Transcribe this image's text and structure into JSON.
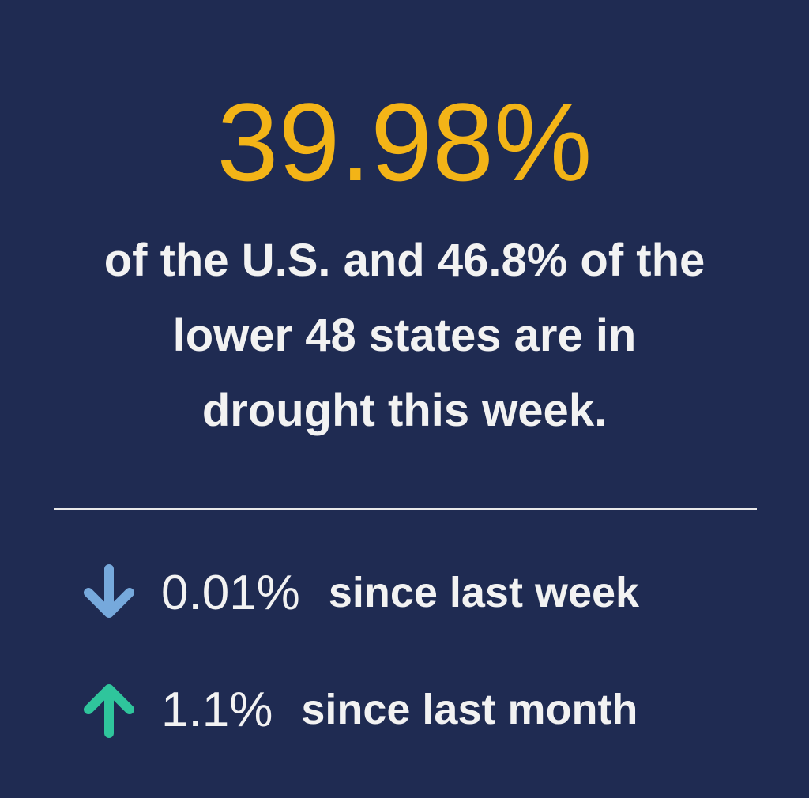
{
  "headline": "39.98%",
  "description": [
    "of the U.S. and 46.8% of the",
    "lower 48 states are in",
    "drought this week."
  ],
  "changes": [
    {
      "value": "0.01%",
      "label": "since last week"
    },
    {
      "value": "1.1%",
      "label": "since last month"
    }
  ]
}
